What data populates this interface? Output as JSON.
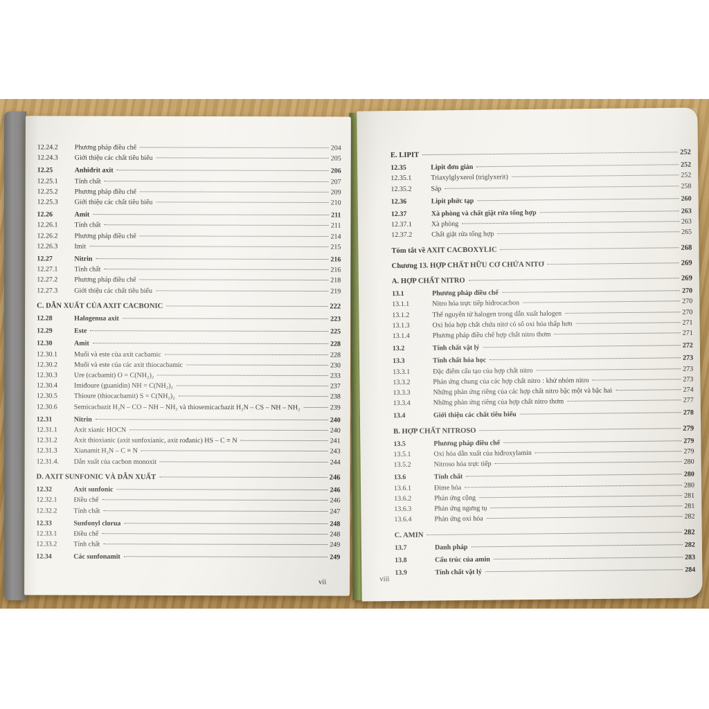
{
  "palette": {
    "wood_table": "#b5945c",
    "paper": "#f3f1eb",
    "spine_edge_grey": "#8b8a88",
    "cover_green": "#76874d",
    "text": "#35332e"
  },
  "left_page": {
    "folio": "vii",
    "entries": [
      {
        "num": "12.24.2",
        "title": "Phương pháp điều chế",
        "page": "204",
        "style": "sub"
      },
      {
        "num": "12.24.3",
        "title": "Giới thiệu các chất tiêu biểu",
        "page": "205",
        "style": "sub"
      },
      {
        "num": "12.25",
        "title": "Anhiđrit axit",
        "page": "206",
        "style": "main"
      },
      {
        "num": "12.25.1",
        "title": "Tính chất",
        "page": "207",
        "style": "sub"
      },
      {
        "num": "12.25.2",
        "title": "Phương pháp điều chế",
        "page": "209",
        "style": "sub"
      },
      {
        "num": "12.25.3",
        "title": "Giới thiệu các chất tiêu biểu",
        "page": "210",
        "style": "sub"
      },
      {
        "num": "12.26",
        "title": "Amit",
        "page": "211",
        "style": "main"
      },
      {
        "num": "12.26.1",
        "title": "Tính chất",
        "page": "211",
        "style": "sub"
      },
      {
        "num": "12.26.2",
        "title": "Phương pháp điều chế",
        "page": "214",
        "style": "sub"
      },
      {
        "num": "12.26.3",
        "title": "Imit",
        "page": "215",
        "style": "sub"
      },
      {
        "num": "12.27",
        "title": "Nitrin",
        "page": "216",
        "style": "main"
      },
      {
        "num": "12.27.1",
        "title": "Tính chất",
        "page": "216",
        "style": "sub"
      },
      {
        "num": "12.27.2",
        "title": "Phương pháp điều chế",
        "page": "218",
        "style": "sub"
      },
      {
        "num": "12.27.3",
        "title": "Giới thiệu các chất tiêu biểu",
        "page": "219",
        "style": "sub"
      },
      {
        "num": "",
        "title": "C. DẪN XUẤT CỦA AXIT CACBONIC",
        "page": "222",
        "style": "heading"
      },
      {
        "num": "12.28",
        "title": "Halogenua axit",
        "page": "223",
        "style": "main"
      },
      {
        "num": "12.29",
        "title": "Este",
        "page": "225",
        "style": "main"
      },
      {
        "num": "12.30",
        "title": "Amit",
        "page": "228",
        "style": "main"
      },
      {
        "num": "12.30.1",
        "title": "Muối và este của axit cacbamic",
        "page": "228",
        "style": "sub"
      },
      {
        "num": "12.30.2",
        "title": "Muối và este của các axit thiocacbamic",
        "page": "230",
        "style": "sub"
      },
      {
        "num": "12.30.3",
        "title": "Ure (cacbamit) O = C(NH₂)₂",
        "page": "233",
        "style": "sub"
      },
      {
        "num": "12.30.4",
        "title": "Imiđoure (guanidin) NH = C(NH₂)₂",
        "page": "237",
        "style": "sub"
      },
      {
        "num": "12.30.5",
        "title": "Thioure (thiocacbamit) S = C(NH₂)₂",
        "page": "238",
        "style": "sub"
      },
      {
        "num": "12.30.6",
        "title": "Semicacbazit H₂N – CO – NH – NH₂ và thiosemicacbazit H₂N – CS – NH – NH₂",
        "page": "239",
        "style": "sub"
      },
      {
        "num": "12.31",
        "title": "Nitrin",
        "page": "240",
        "style": "main"
      },
      {
        "num": "12.31.1",
        "title": "Axit xianic HOCN",
        "page": "240",
        "style": "sub"
      },
      {
        "num": "12.31.2",
        "title": "Axit thioxianic (axit sunfoxianic, axit rođanic) HS – C ≡ N",
        "page": "241",
        "style": "sub"
      },
      {
        "num": "12.31.3",
        "title": "Xianamit H₂N – C ≡ N",
        "page": "243",
        "style": "sub"
      },
      {
        "num": "12.31.4.",
        "title": "Dẫn xuất của cacbon monoxit",
        "page": "244",
        "style": "sub"
      },
      {
        "num": "",
        "title": "D. AXIT SUNFONIC VÀ DẪN XUẤT",
        "page": "246",
        "style": "heading"
      },
      {
        "num": "12.32",
        "title": "Axit sunfonic",
        "page": "246",
        "style": "main"
      },
      {
        "num": "12.32.1",
        "title": "Điều chế",
        "page": "246",
        "style": "sub"
      },
      {
        "num": "12.32.2",
        "title": "Tính chất",
        "page": "247",
        "style": "sub"
      },
      {
        "num": "12.33",
        "title": "Sunfonyl clorua",
        "page": "248",
        "style": "main"
      },
      {
        "num": "12.33.1",
        "title": "Điều chế",
        "page": "248",
        "style": "sub"
      },
      {
        "num": "12.33.2",
        "title": "Tính chất",
        "page": "249",
        "style": "sub"
      },
      {
        "num": "12.34",
        "title": "Các sunfonamit",
        "page": "249",
        "style": "main"
      }
    ]
  },
  "right_page": {
    "folio": "viii",
    "entries": [
      {
        "num": "",
        "title": "E. LIPIT",
        "page": "252",
        "style": "heading"
      },
      {
        "num": "12.35",
        "title": "Lipit đơn giản",
        "page": "252",
        "style": "main"
      },
      {
        "num": "12.35.1",
        "title": "Triaxylglyxerol (triglyxerit)",
        "page": "252",
        "style": "sub"
      },
      {
        "num": "12.35.2",
        "title": "Sáp",
        "page": "258",
        "style": "sub"
      },
      {
        "num": "12.36",
        "title": "Lipit phức tạp",
        "page": "260",
        "style": "main"
      },
      {
        "num": "12.37",
        "title": "Xà phòng và chất giặt rửa tổng hợp",
        "page": "263",
        "style": "main"
      },
      {
        "num": "12.37.1",
        "title": "Xà phòng",
        "page": "263",
        "style": "sub"
      },
      {
        "num": "12.37.2",
        "title": "Chất giặt rửa tổng hợp",
        "page": "265",
        "style": "sub"
      },
      {
        "num": "",
        "title": "Tóm tắt về AXIT CACBOXYLIC",
        "page": "268",
        "style": "heading"
      },
      {
        "num": "",
        "title": "Chương 13. HỢP CHẤT HỮU CƠ CHỨA NITƠ",
        "page": "269",
        "style": "heading"
      },
      {
        "num": "",
        "title": "A. HỢP CHẤT NITRO",
        "page": "269",
        "style": "heading"
      },
      {
        "num": "13.1",
        "title": "Phương pháp điều chế",
        "page": "270",
        "style": "main"
      },
      {
        "num": "13.1.1",
        "title": "Nitro hóa trực tiếp hiđrocacbon",
        "page": "270",
        "style": "sub"
      },
      {
        "num": "13.1.2",
        "title": "Thế nguyên tử halogen trong dẫn xuất halogen",
        "page": "270",
        "style": "sub"
      },
      {
        "num": "13.1.3",
        "title": "Oxi hóa hợp chất chứa nitơ có số oxi hóa thấp hơn",
        "page": "271",
        "style": "sub"
      },
      {
        "num": "13.1.4",
        "title": "Phương pháp điều chế hợp chất nitro thơm",
        "page": "271",
        "style": "sub"
      },
      {
        "num": "13.2",
        "title": "Tính chất vật lý",
        "page": "272",
        "style": "main"
      },
      {
        "num": "13.3",
        "title": "Tính chất hóa học",
        "page": "273",
        "style": "main"
      },
      {
        "num": "13.3.1",
        "title": "Đặc điểm cấu tạo của hợp chất nitro",
        "page": "273",
        "style": "sub"
      },
      {
        "num": "13.3.2",
        "title": "Phản ứng chung của các hợp chất nitro : khử nhóm nitro",
        "page": "273",
        "style": "sub"
      },
      {
        "num": "13.3.3",
        "title": "Những phản ứng riêng của các hợp chất nitro bậc một và bậc hai",
        "page": "274",
        "style": "sub"
      },
      {
        "num": "13.3.4",
        "title": "Những phản ứng riêng của hợp chất nitro thơm",
        "page": "277",
        "style": "sub"
      },
      {
        "num": "13.4",
        "title": "Giới thiệu các chất tiêu biểu",
        "page": "278",
        "style": "main"
      },
      {
        "num": "",
        "title": "B. HỢP CHẤT NITROSO",
        "page": "279",
        "style": "heading"
      },
      {
        "num": "13.5",
        "title": "Phương pháp điều chế",
        "page": "279",
        "style": "main"
      },
      {
        "num": "13.5.1",
        "title": "Oxi hóa dẫn xuất của hiđroxylamin",
        "page": "279",
        "style": "sub"
      },
      {
        "num": "13.5.2",
        "title": "Nitroso hóa trực tiếp",
        "page": "280",
        "style": "sub"
      },
      {
        "num": "13.6",
        "title": "Tính chất",
        "page": "280",
        "style": "main"
      },
      {
        "num": "13.6.1",
        "title": "Đime hóa",
        "page": "280",
        "style": "sub"
      },
      {
        "num": "13.6.2",
        "title": "Phản ứng cộng",
        "page": "281",
        "style": "sub"
      },
      {
        "num": "13.6.3",
        "title": "Phản ứng ngưng tụ",
        "page": "281",
        "style": "sub"
      },
      {
        "num": "13.6.4",
        "title": "Phản ứng oxi hóa",
        "page": "282",
        "style": "sub"
      },
      {
        "num": "",
        "title": "C. AMIN",
        "page": "282",
        "style": "heading"
      },
      {
        "num": "13.7",
        "title": "Danh pháp",
        "page": "282",
        "style": "main"
      },
      {
        "num": "13.8",
        "title": "Cấu trúc của amin",
        "page": "283",
        "style": "main"
      },
      {
        "num": "13.9",
        "title": "Tính chất vật lý",
        "page": "284",
        "style": "main"
      }
    ]
  }
}
